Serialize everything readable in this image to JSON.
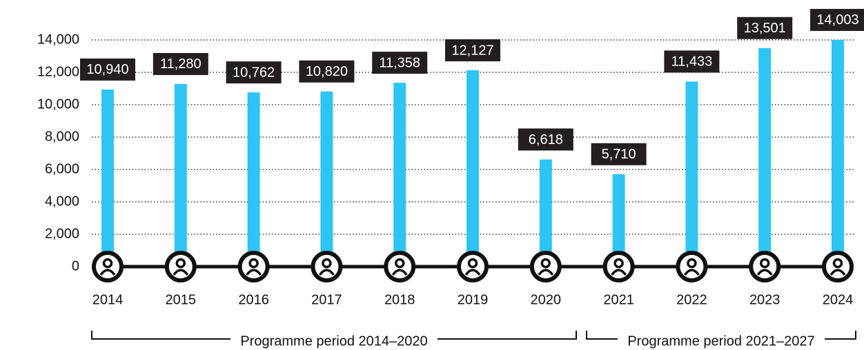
{
  "chart_data": {
    "type": "bar",
    "categories": [
      "2014",
      "2015",
      "2016",
      "2017",
      "2018",
      "2019",
      "2020",
      "2021",
      "2022",
      "2023",
      "2024"
    ],
    "values": [
      10940,
      11280,
      10762,
      10820,
      11358,
      12127,
      6618,
      5710,
      11433,
      13501,
      14003
    ],
    "value_labels": [
      "10,940",
      "11,280",
      "10,762",
      "10,820",
      "11,358",
      "12,127",
      "6,618",
      "5,710",
      "11,433",
      "13,501",
      "14,003"
    ],
    "color": "#2ec5f4",
    "ylim": [
      0,
      14000
    ],
    "yticks": [
      0,
      {
        "value": 2000,
        "label": "2,000"
      },
      {
        "value": 4000,
        "label": "4,000"
      },
      {
        "value": 6000,
        "label": "6,000"
      },
      {
        "value": 8000,
        "label": "8,000"
      },
      {
        "value": 10000,
        "label": "10,000"
      },
      {
        "value": 12000,
        "label": "12,000"
      },
      {
        "value": 14000,
        "label": "14,000"
      }
    ],
    "grid": true,
    "annotations": [
      "Programme period 2014–2020",
      "Programme period 2021–2027"
    ]
  }
}
